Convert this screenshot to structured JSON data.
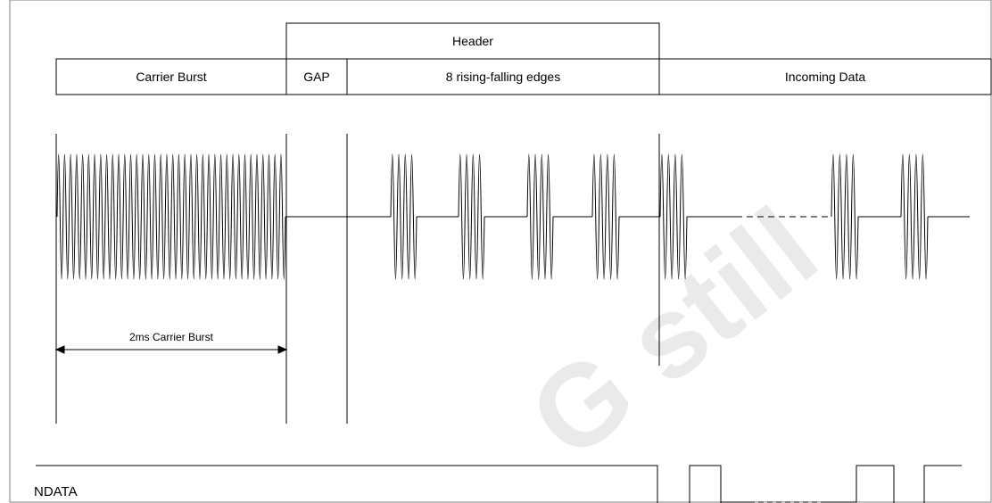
{
  "header": {
    "top_label": "Header",
    "segments": {
      "carrier_burst": "Carrier Burst",
      "gap": "GAP",
      "edges": "8 rising-falling edges",
      "incoming": "Incoming Data"
    }
  },
  "dimension": {
    "label": "2ms Carrier Burst"
  },
  "signal": {
    "ndata_label": "NDATA"
  },
  "watermark": {
    "text": "G    still"
  }
}
